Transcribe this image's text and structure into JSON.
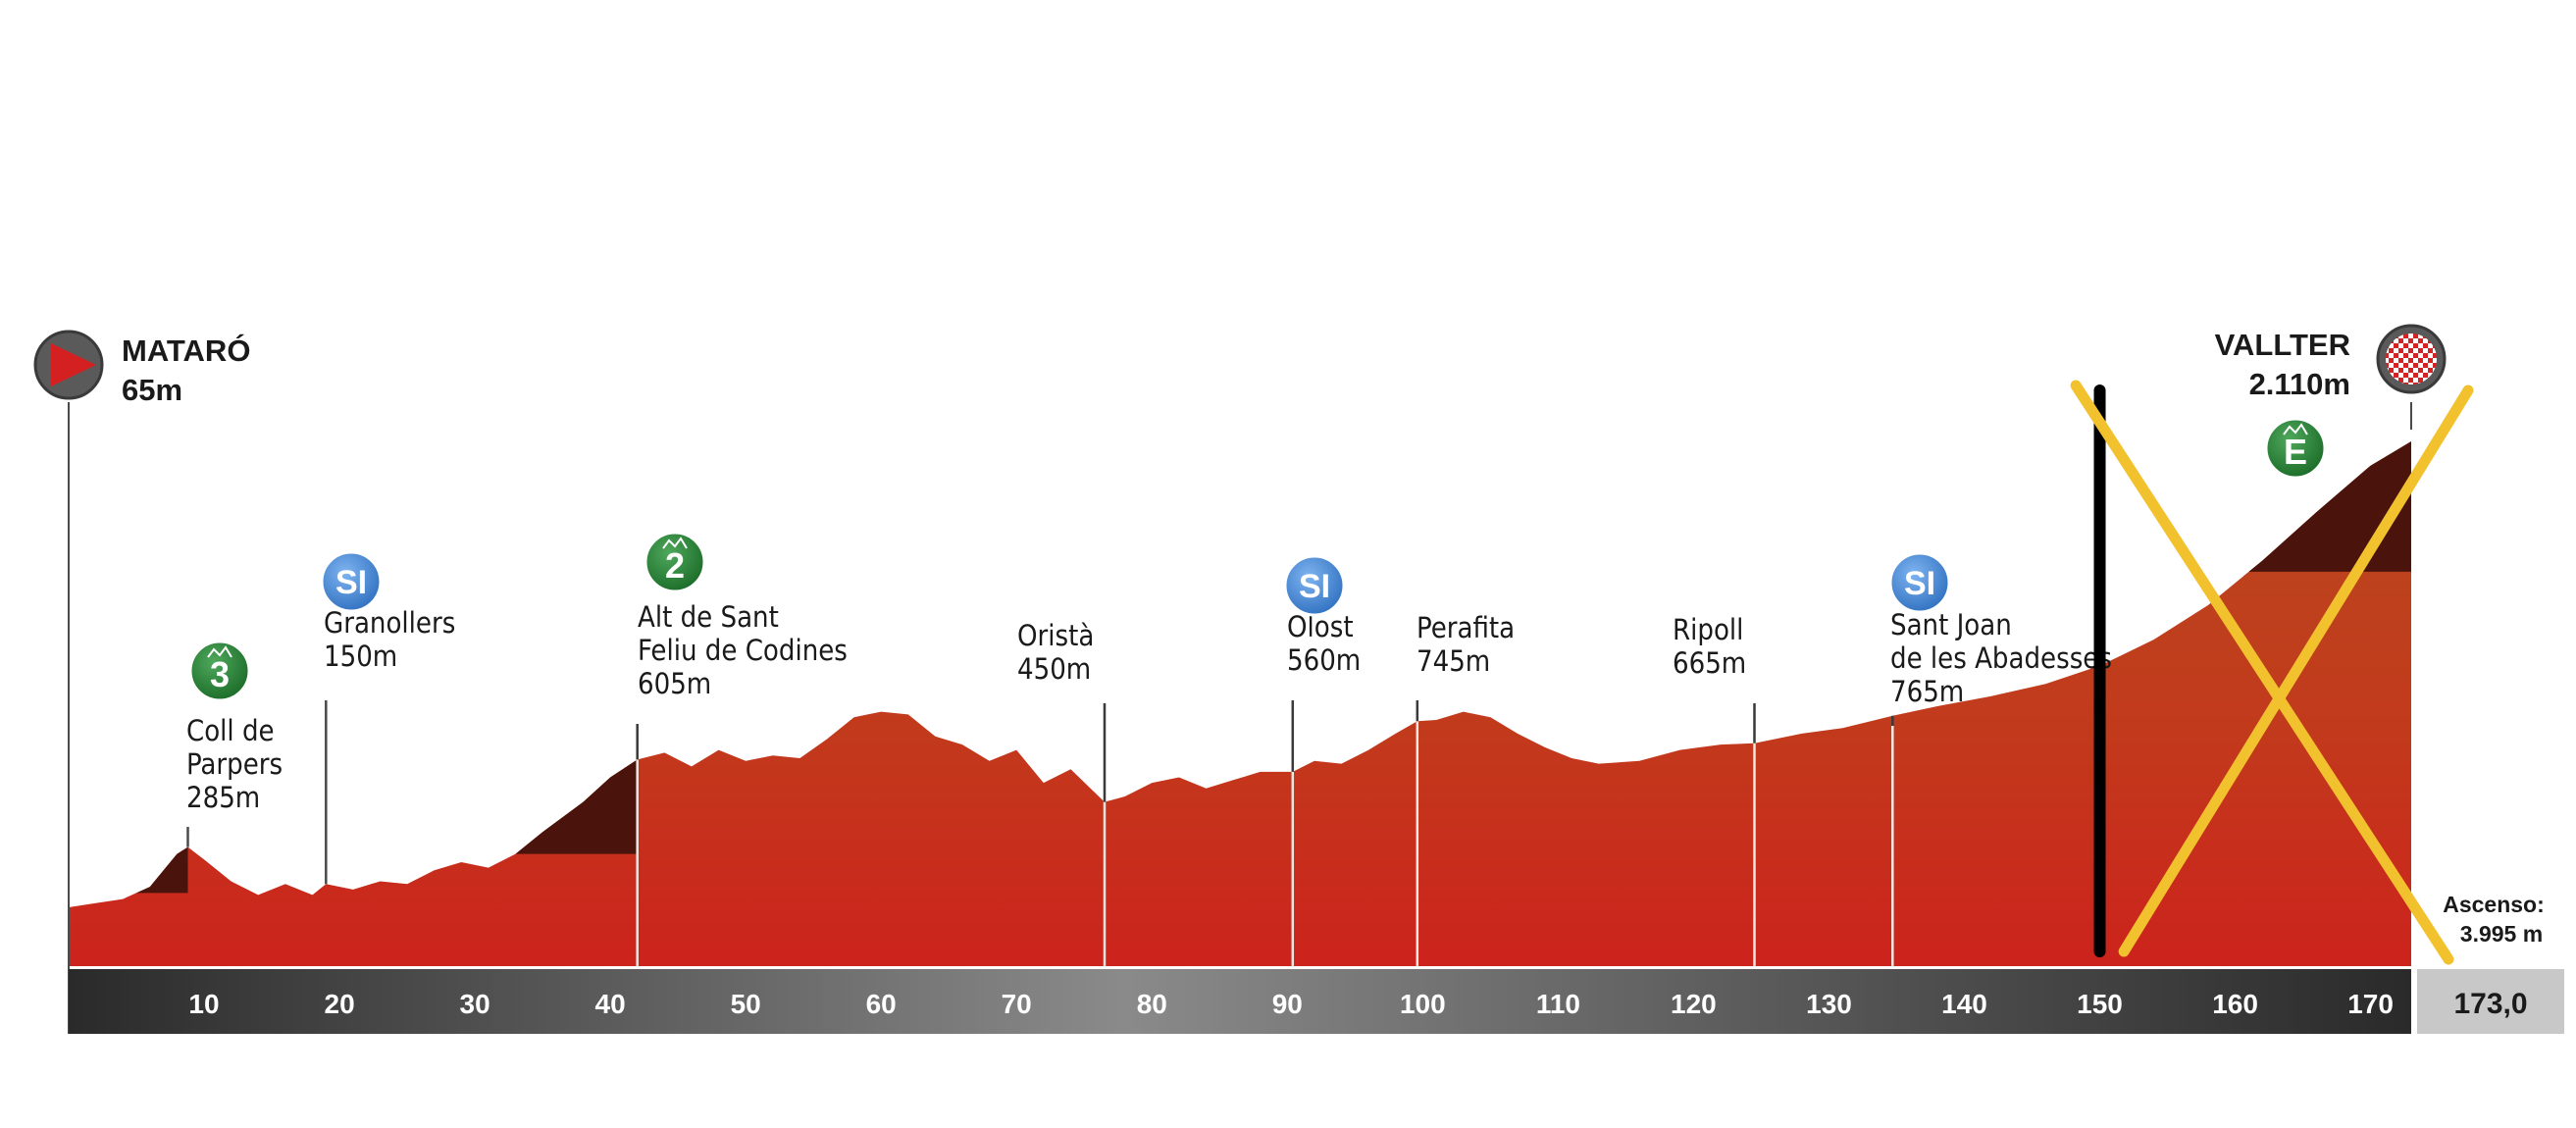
{
  "chart_data": {
    "type": "area",
    "title": "",
    "xlabel": "",
    "ylabel": "",
    "xlim": [
      0,
      173
    ],
    "x_ticks": [
      10,
      20,
      30,
      40,
      50,
      60,
      70,
      80,
      90,
      100,
      110,
      120,
      130,
      140,
      150,
      160,
      170
    ],
    "total_distance": "173,0",
    "ascent_label": "Ascenso:",
    "ascent_value": "3.995 m",
    "start": {
      "name": "MATARÓ",
      "altitude": "65m",
      "km": 0
    },
    "finish": {
      "name": "VALLTER",
      "altitude": "2.110m",
      "km": 173
    },
    "points": [
      {
        "km": 8.8,
        "name": "Coll de Parpers",
        "lines": [
          "Coll de",
          "Parpers"
        ],
        "altitude": "285m",
        "badge": "3",
        "badge_type": "mountain"
      },
      {
        "km": 19,
        "name": "Granollers",
        "lines": [
          "Granollers"
        ],
        "altitude": "150m",
        "badge": "SI",
        "badge_type": "sprint"
      },
      {
        "km": 42,
        "name": "Alt de Sant Feliu de Codines",
        "lines": [
          "Alt de Sant",
          "Feliu de Codines"
        ],
        "altitude": "605m",
        "badge": "2",
        "badge_type": "mountain"
      },
      {
        "km": 76.5,
        "name": "Oristà",
        "lines": [
          "Oristà"
        ],
        "altitude": "450m",
        "badge": "",
        "badge_type": "none"
      },
      {
        "km": 90.4,
        "name": "Olost",
        "lines": [
          "Olost"
        ],
        "altitude": "560m",
        "badge": "SI",
        "badge_type": "sprint"
      },
      {
        "km": 99.6,
        "name": "Perafita",
        "lines": [
          "Perafita"
        ],
        "altitude": "745m",
        "badge": "",
        "badge_type": "none"
      },
      {
        "km": 124.5,
        "name": "Ripoll",
        "lines": [
          "Ripoll"
        ],
        "altitude": "665m",
        "badge": "",
        "badge_type": "none"
      },
      {
        "km": 134.7,
        "name": "Sant Joan de les Abadesses",
        "lines": [
          "Sant Joan",
          "de les Abadesses"
        ],
        "altitude": "765m",
        "badge": "SI",
        "badge_type": "sprint"
      }
    ],
    "finish_badge": "E",
    "profile": [
      [
        0,
        65
      ],
      [
        2,
        80
      ],
      [
        4,
        95
      ],
      [
        6,
        140
      ],
      [
        8,
        260
      ],
      [
        8.8,
        285
      ],
      [
        10,
        240
      ],
      [
        12,
        160
      ],
      [
        14,
        110
      ],
      [
        16,
        150
      ],
      [
        18,
        110
      ],
      [
        19,
        150
      ],
      [
        21,
        130
      ],
      [
        23,
        160
      ],
      [
        25,
        150
      ],
      [
        27,
        200
      ],
      [
        29,
        230
      ],
      [
        31,
        210
      ],
      [
        33,
        260
      ],
      [
        35,
        340
      ],
      [
        38,
        450
      ],
      [
        40,
        540
      ],
      [
        42,
        605
      ],
      [
        44,
        630
      ],
      [
        46,
        580
      ],
      [
        48,
        640
      ],
      [
        50,
        600
      ],
      [
        52,
        620
      ],
      [
        54,
        610
      ],
      [
        56,
        680
      ],
      [
        58,
        760
      ],
      [
        60,
        780
      ],
      [
        62,
        770
      ],
      [
        64,
        690
      ],
      [
        66,
        660
      ],
      [
        68,
        600
      ],
      [
        70,
        640
      ],
      [
        72,
        520
      ],
      [
        74,
        570
      ],
      [
        76.5,
        450
      ],
      [
        78,
        470
      ],
      [
        80,
        520
      ],
      [
        82,
        540
      ],
      [
        84,
        500
      ],
      [
        86,
        530
      ],
      [
        88,
        560
      ],
      [
        90.4,
        560
      ],
      [
        92,
        600
      ],
      [
        94,
        590
      ],
      [
        96,
        640
      ],
      [
        98,
        700
      ],
      [
        99.6,
        745
      ],
      [
        101,
        750
      ],
      [
        103,
        780
      ],
      [
        105,
        760
      ],
      [
        107,
        700
      ],
      [
        109,
        650
      ],
      [
        111,
        610
      ],
      [
        113,
        590
      ],
      [
        116,
        600
      ],
      [
        119,
        640
      ],
      [
        122,
        660
      ],
      [
        124.5,
        665
      ],
      [
        128,
        700
      ],
      [
        131,
        720
      ],
      [
        134.7,
        765
      ],
      [
        138,
        800
      ],
      [
        142,
        850
      ],
      [
        146,
        910
      ],
      [
        150,
        1000
      ],
      [
        154,
        1130
      ],
      [
        158,
        1300
      ],
      [
        162,
        1520
      ],
      [
        166,
        1760
      ],
      [
        170,
        1990
      ],
      [
        173,
        2110
      ]
    ],
    "categorised_climbs": [
      [
        5,
        8.8
      ],
      [
        33,
        42
      ],
      [
        161,
        173
      ]
    ],
    "annotations": {
      "vertical_bar_km": 150,
      "cross_from_km": 152,
      "cross_to_km": 173
    },
    "colors": {
      "profile_top": "#b8481e",
      "profile_base": "#c9231c",
      "climb": "#4a140c",
      "axis_dark": "#2a2a2a",
      "axis_mid": "#8a8a8a",
      "sprint_badge": "#3b7fd0",
      "mountain_badge": "#1f7a2e",
      "cross": "#f2c12e",
      "bar": "#000000",
      "distance_box": "#c8c8c8"
    },
    "grid": false,
    "legend": "none"
  }
}
